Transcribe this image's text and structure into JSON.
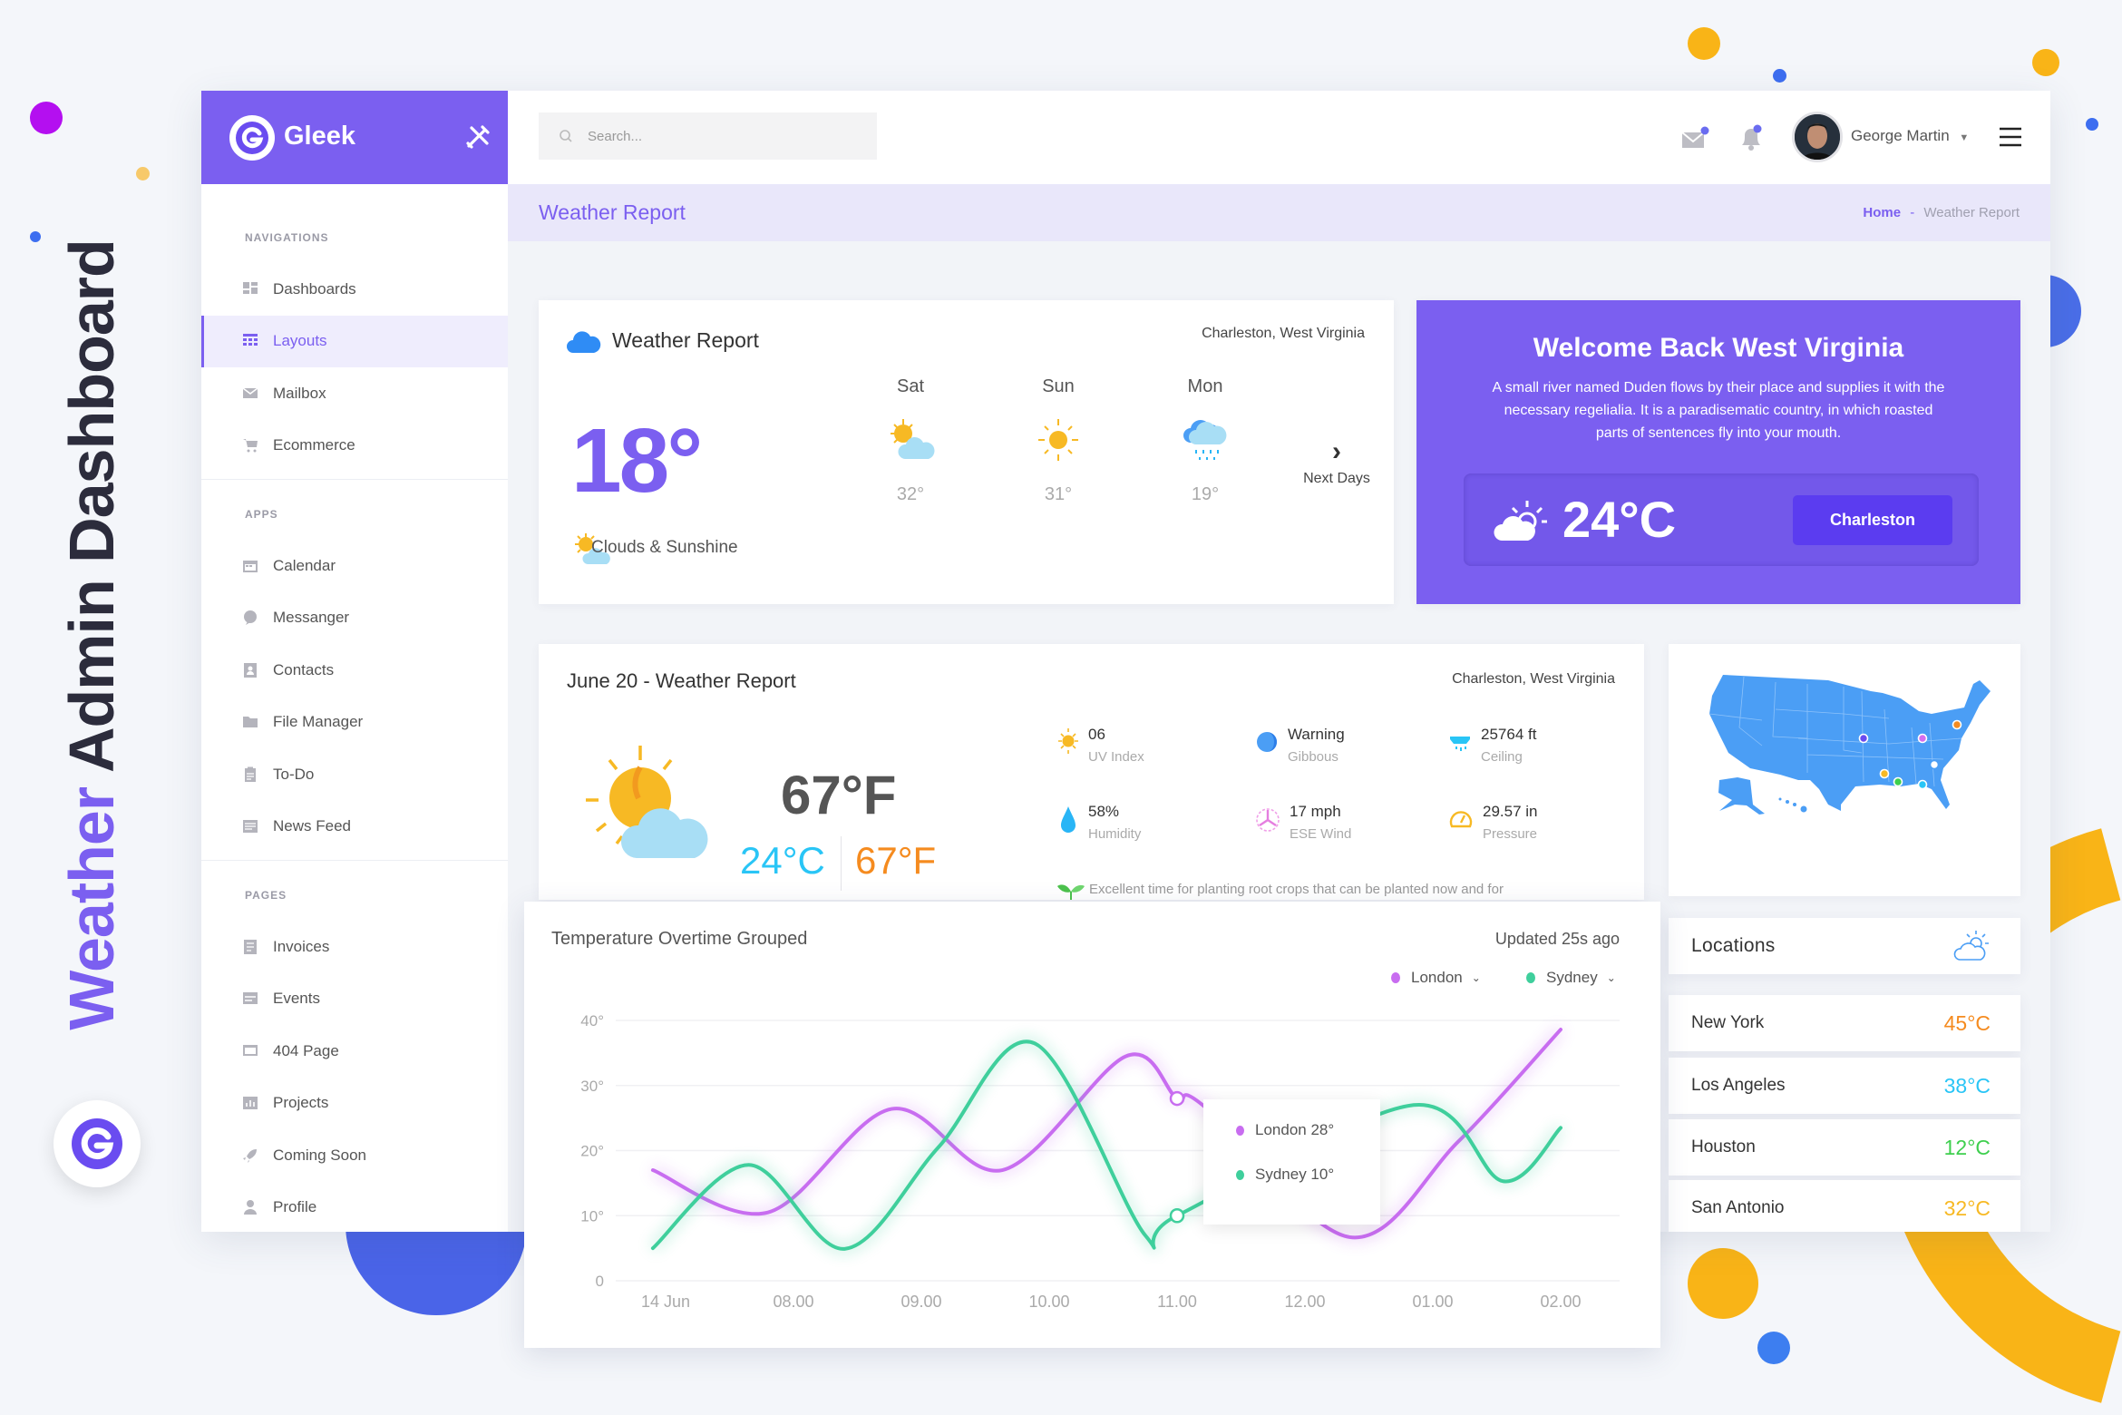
{
  "decor": {
    "title_accent": "Weather",
    "title_rest": " Admin Dashboard"
  },
  "colors": {
    "accent": "#7b5ff0",
    "button": "#5b3cf0",
    "london": "#c86df0",
    "sydney": "#3fcf9c",
    "orange": "#f58b1f",
    "cyan": "#29c5f6",
    "green": "#3ecf4e",
    "yellow": "#f7b924",
    "map": "#4b9ef5"
  },
  "brand": {
    "name": "Gleek"
  },
  "search": {
    "placeholder": "Search..."
  },
  "user": {
    "name": "George Martin"
  },
  "page": {
    "title": "Weather Report",
    "breadcrumb": {
      "home": "Home",
      "separator": "-",
      "current": "Weather Report"
    }
  },
  "sidebar": {
    "sections": [
      {
        "label": "NAVIGATIONS",
        "items": [
          {
            "label": "Dashboards",
            "icon": "dashboard-icon"
          },
          {
            "label": "Layouts",
            "icon": "layouts-icon",
            "active": true
          },
          {
            "label": "Mailbox",
            "icon": "mail-icon"
          },
          {
            "label": "Ecommerce",
            "icon": "cart-icon"
          }
        ]
      },
      {
        "label": "APPS",
        "items": [
          {
            "label": "Calendar",
            "icon": "calendar-icon"
          },
          {
            "label": "Messanger",
            "icon": "chat-icon"
          },
          {
            "label": "Contacts",
            "icon": "contacts-icon"
          },
          {
            "label": "File Manager",
            "icon": "folder-icon"
          },
          {
            "label": "To-Do",
            "icon": "clipboard-icon"
          },
          {
            "label": "News Feed",
            "icon": "news-icon"
          }
        ]
      },
      {
        "label": "PAGES",
        "items": [
          {
            "label": "Invoices",
            "icon": "invoice-icon"
          },
          {
            "label": "Events",
            "icon": "events-icon"
          },
          {
            "label": "404 Page",
            "icon": "error-page-icon"
          },
          {
            "label": "Projects",
            "icon": "projects-icon"
          },
          {
            "label": "Coming Soon",
            "icon": "rocket-icon"
          },
          {
            "label": "Profile",
            "icon": "user-icon"
          }
        ]
      }
    ]
  },
  "weather_card": {
    "title": "Weather Report",
    "location": "Charleston, West Virginia",
    "temp": "18°",
    "condition": "Clouds & Sunshine",
    "days": [
      {
        "day": "Sat",
        "temp": "32°",
        "icon": "sun-cloud-icon"
      },
      {
        "day": "Sun",
        "temp": "31°",
        "icon": "sun-icon"
      },
      {
        "day": "Mon",
        "temp": "19°",
        "icon": "rain-cloud-icon"
      }
    ],
    "next_label": "Next Days"
  },
  "welcome": {
    "title": "Welcome Back West Virginia",
    "text": "A small river named Duden flows by their place and supplies it with the necessary regelialia. It is a paradisematic country, in which roasted parts of sentences fly into your mouth.",
    "temp": "24°C",
    "button": "Charleston"
  },
  "daily": {
    "title": "June 20 - Weather Report",
    "location": "Charleston, West Virginia",
    "temp_f": "67°F",
    "temp_c": "24°C",
    "temp_f2": "67°F",
    "stats": [
      {
        "value": "06",
        "label": "UV Index",
        "icon": "uv-sun-icon"
      },
      {
        "value": "Warning",
        "label": "Gibbous",
        "icon": "moon-icon"
      },
      {
        "value": "25764 ft",
        "label": "Ceiling",
        "icon": "ceiling-icon"
      },
      {
        "value": "58%",
        "label": "Humidity",
        "icon": "water-drop-icon"
      },
      {
        "value": "17 mph",
        "label": "ESE Wind",
        "icon": "wind-icon"
      },
      {
        "value": "29.57 in",
        "label": "Pressure",
        "icon": "gauge-icon"
      }
    ],
    "tip": "Excellent time for planting root crops that can be planted now and for"
  },
  "locations": {
    "title": "Locations",
    "rows": [
      {
        "city": "New York",
        "temp": "45°C",
        "color": "#f58b1f"
      },
      {
        "city": "Los Angeles",
        "temp": "38°C",
        "color": "#29c5f6"
      },
      {
        "city": "Houston",
        "temp": "12°C",
        "color": "#3ecf4e"
      },
      {
        "city": "San Antonio",
        "temp": "32°C",
        "color": "#f7b924"
      }
    ]
  },
  "chart_data": {
    "type": "line",
    "title": "Temperature Overtime Grouped",
    "updated": "Updated 25s ago",
    "xticks": [
      "14 Jun",
      "08.00",
      "09.00",
      "10.00",
      "11.00",
      "12.00",
      "01.00",
      "02.00"
    ],
    "yticks": [
      "0",
      "10°",
      "20°",
      "30°",
      "40°"
    ],
    "ylim": [
      0,
      40
    ],
    "grid": true,
    "legend_position": "top-right",
    "series": [
      {
        "name": "London",
        "color": "#c86df0",
        "points": [
          [
            "06:54",
            17
          ],
          [
            "07:48",
            10.5
          ],
          [
            "08:46",
            26.4
          ],
          [
            "09:38",
            17
          ],
          [
            "10:36",
            34.5
          ],
          [
            "11:00",
            28
          ],
          [
            "11:12",
            27
          ],
          [
            "12:21",
            6.7
          ],
          [
            "13:12",
            21.4
          ],
          [
            "14:00",
            38.6
          ]
        ]
      },
      {
        "name": "Sydney",
        "color": "#3fcf9c",
        "points": [
          [
            "06:54",
            5
          ],
          [
            "07:39",
            17.8
          ],
          [
            "08:24",
            4.9
          ],
          [
            "09:08",
            20.5
          ],
          [
            "09:53",
            36.5
          ],
          [
            "10:45",
            7
          ],
          [
            "11:00",
            10
          ],
          [
            "12:51",
            27
          ],
          [
            "13:33",
            15.3
          ],
          [
            "14:00",
            23.5
          ]
        ]
      }
    ],
    "tooltip": {
      "x": "11:00",
      "items": [
        {
          "label": "London 28°"
        },
        {
          "label": "Sydney 10°"
        }
      ]
    }
  }
}
